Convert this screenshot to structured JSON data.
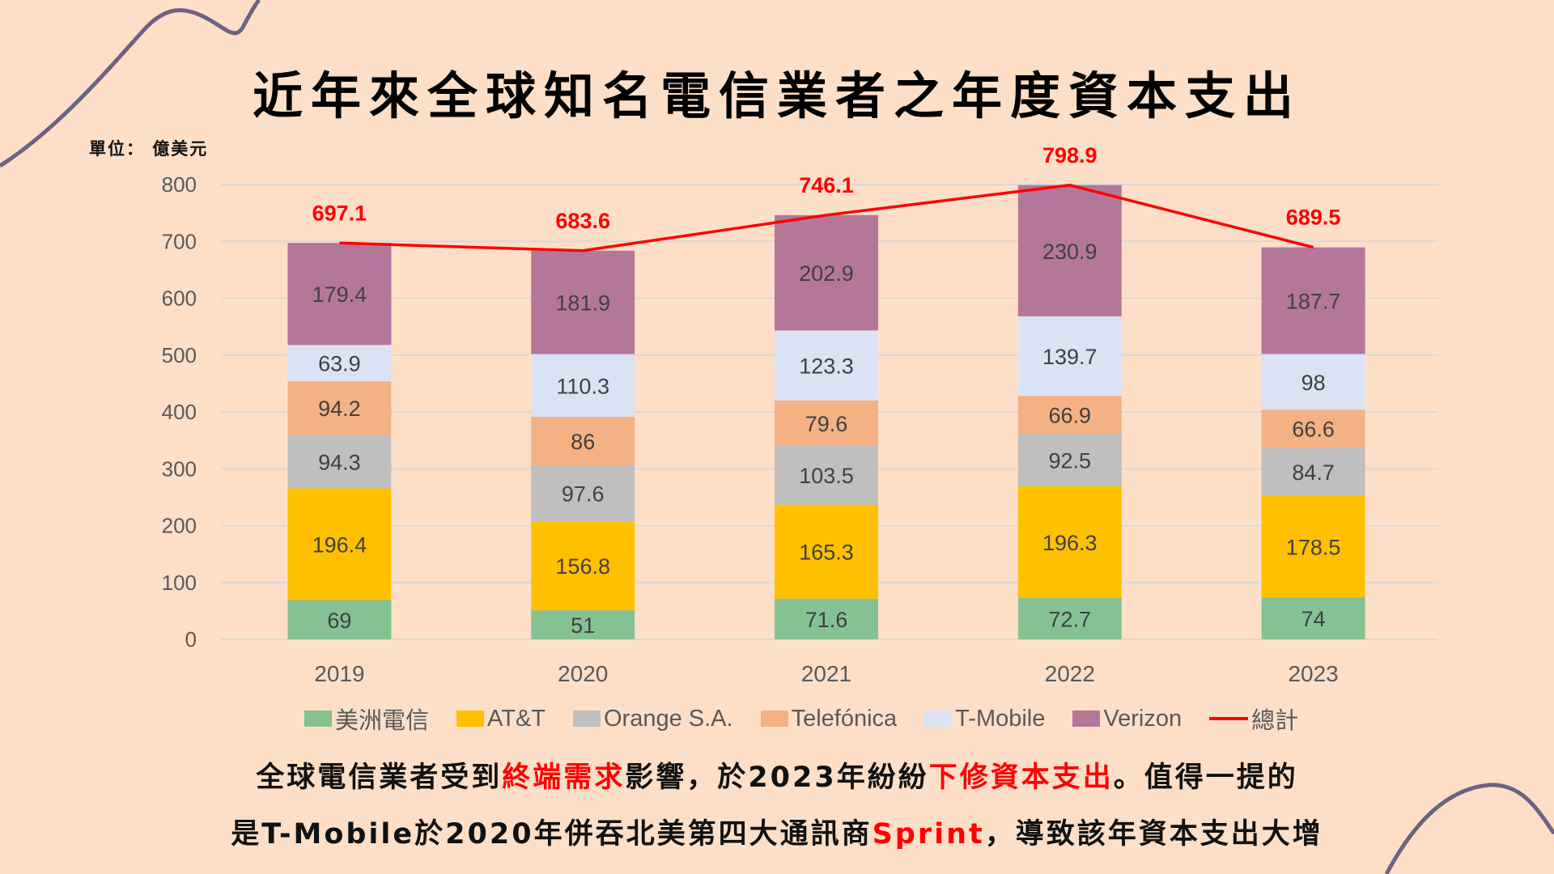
{
  "title": "近年來全球知名電信業者之年度資本支出",
  "unit_label": "單位： 億美元",
  "colors": {
    "background": "#FDDFC8",
    "decor_curve": "#6E6282",
    "highlight": "#FF0000"
  },
  "chart_data": {
    "type": "bar",
    "stacked": true,
    "title": "近年來全球知名電信業者之年度資本支出",
    "xlabel": "",
    "ylabel": "單位： 億美元",
    "ylim": [
      0,
      800
    ],
    "yticks": [
      0,
      100,
      200,
      300,
      400,
      500,
      600,
      700,
      800
    ],
    "grid": true,
    "legend_position": "bottom",
    "categories": [
      "2019",
      "2020",
      "2021",
      "2022",
      "2023"
    ],
    "series": [
      {
        "name": "美洲電信",
        "color": "#86C194",
        "values": [
          69,
          51,
          71.6,
          72.7,
          74
        ]
      },
      {
        "name": "AT&T",
        "color": "#FFC000",
        "values": [
          196.4,
          156.8,
          165.3,
          196.3,
          178.5
        ]
      },
      {
        "name": "Orange S.A.",
        "color": "#BFBFBF",
        "values": [
          94.3,
          97.6,
          103.5,
          92.5,
          84.7
        ]
      },
      {
        "name": "Telefónica",
        "color": "#F4B183",
        "values": [
          94.2,
          86,
          79.6,
          66.9,
          66.6
        ]
      },
      {
        "name": "T-Mobile",
        "color": "#DAE3F3",
        "values": [
          63.9,
          110.3,
          123.3,
          139.7,
          98
        ]
      },
      {
        "name": "Verizon",
        "color": "#B47799",
        "values": [
          179.4,
          181.9,
          202.9,
          230.9,
          187.7
        ]
      }
    ],
    "line_series": {
      "name": "總計",
      "type": "line",
      "color": "#FF0000",
      "values": [
        697.1,
        683.6,
        746.1,
        798.9,
        689.5
      ]
    }
  },
  "caption": {
    "line1": [
      {
        "text": "全球電信業者受到",
        "highlight": false
      },
      {
        "text": "終端需求",
        "highlight": true
      },
      {
        "text": "影響，於2023年紛紛",
        "highlight": false
      },
      {
        "text": "下修資本支出",
        "highlight": true
      },
      {
        "text": "。值得一提的",
        "highlight": false
      }
    ],
    "line2": [
      {
        "text": "是T-Mobile於2020年併吞北美第四大通訊商",
        "highlight": false
      },
      {
        "text": "Sprint",
        "highlight": true
      },
      {
        "text": "，導致該年資本支出大增",
        "highlight": false
      }
    ]
  }
}
